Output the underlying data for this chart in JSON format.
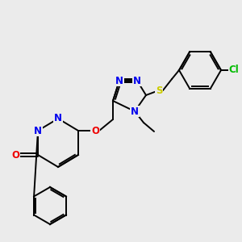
{
  "background_color": "#ebebeb",
  "bond_color": "#000000",
  "atom_colors": {
    "N": "#0000ee",
    "O": "#ee0000",
    "S": "#cccc00",
    "Cl": "#00bb00",
    "C": "#000000"
  },
  "figsize": [
    3.0,
    3.0
  ],
  "dpi": 100
}
